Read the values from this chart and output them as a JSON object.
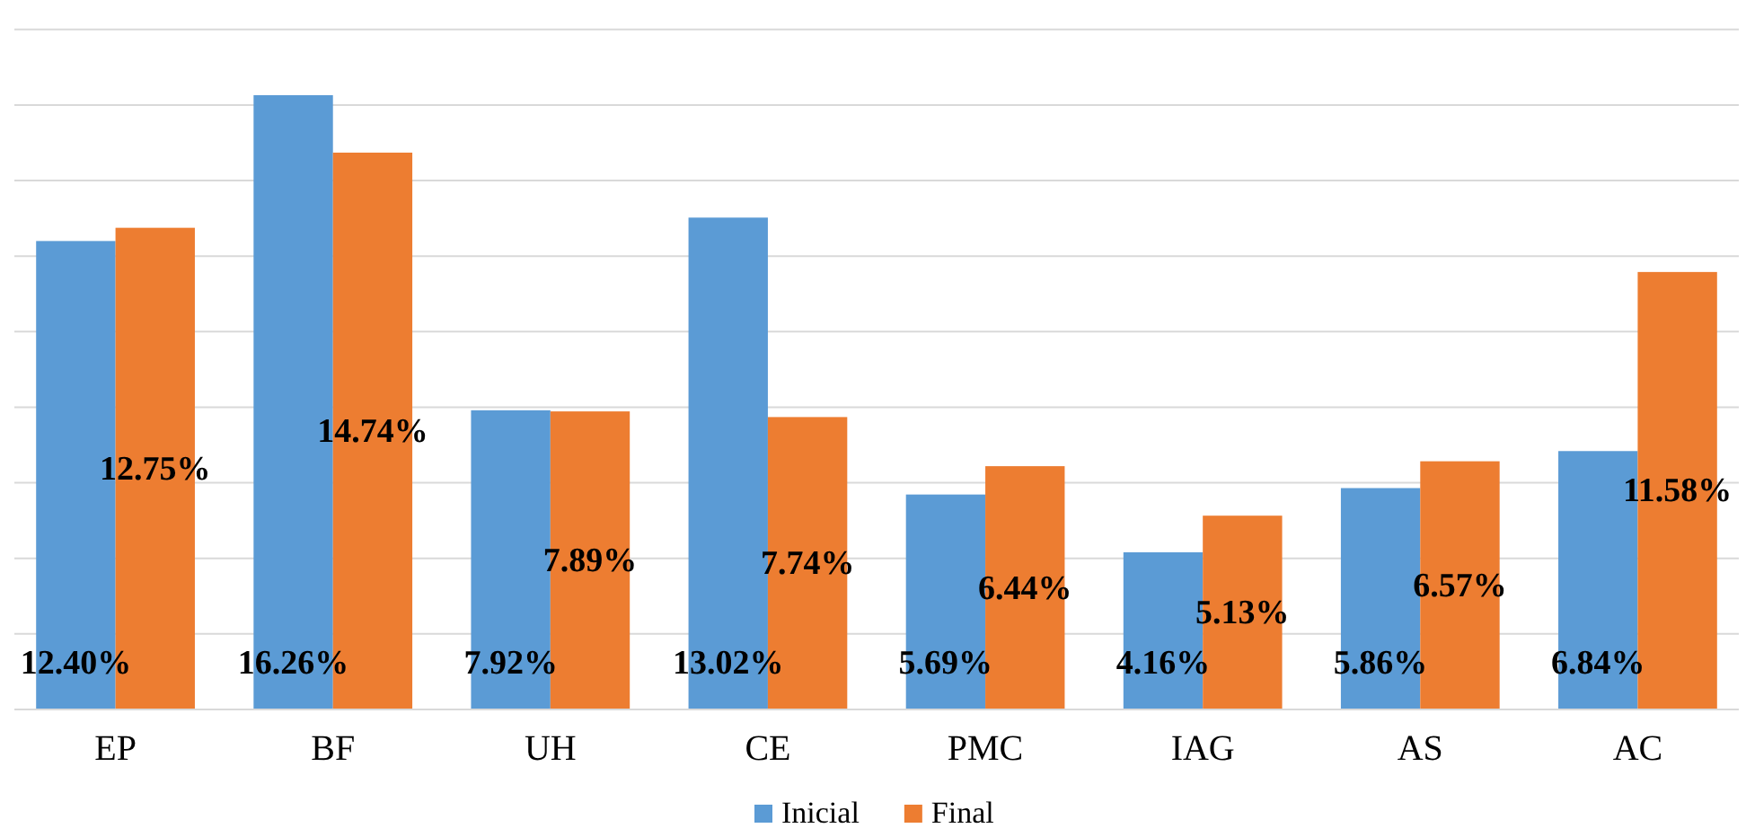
{
  "chart_data": {
    "type": "bar",
    "categories": [
      "EP",
      "BF",
      "UH",
      "CE",
      "PMC",
      "IAG",
      "AS",
      "AC"
    ],
    "series": [
      {
        "name": "Inicial",
        "color": "#5b9bd5",
        "values": [
          12.4,
          16.26,
          7.92,
          13.02,
          5.69,
          4.16,
          5.86,
          6.84
        ],
        "value_labels": [
          "12.40%",
          "16.26%",
          "7.92%",
          "13.02%",
          "5.69%",
          "4.16%",
          "5.86%",
          "6.84%"
        ]
      },
      {
        "name": "Final",
        "color": "#ed7d31",
        "values": [
          12.75,
          14.74,
          7.89,
          7.74,
          6.44,
          5.13,
          6.57,
          11.58
        ],
        "value_labels": [
          "12.75%",
          "14.74%",
          "7.89%",
          "7.74%",
          "6.44%",
          "5.13%",
          "6.57%",
          "11.58%"
        ]
      }
    ],
    "tick_labels": "x",
    "grid": "y",
    "legend": "bottom"
  }
}
